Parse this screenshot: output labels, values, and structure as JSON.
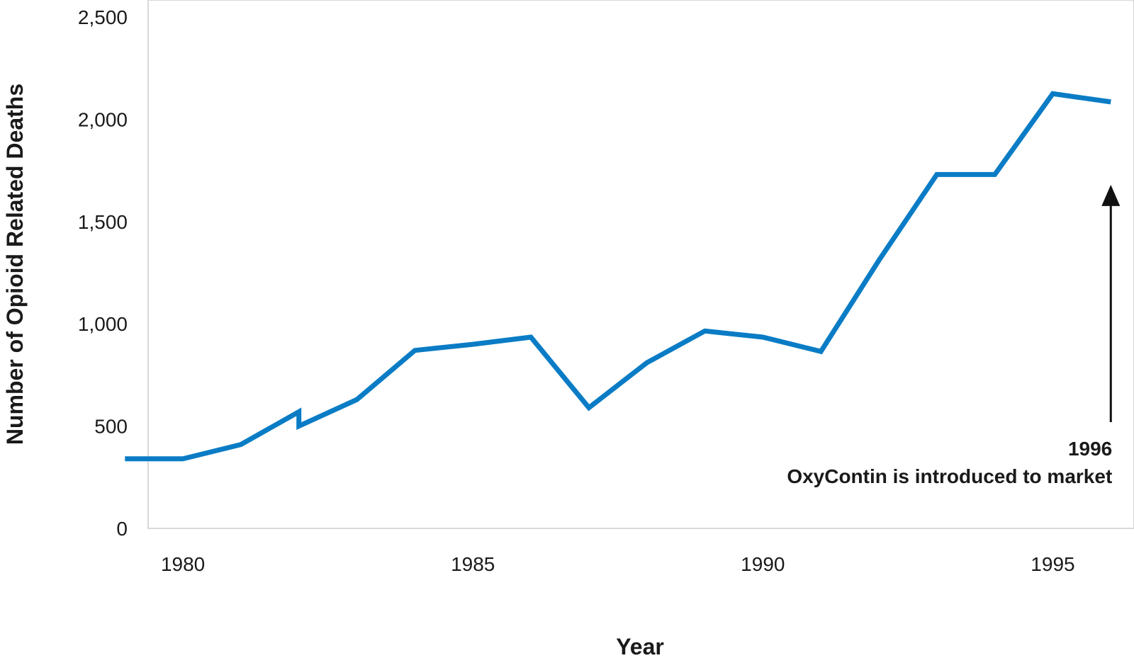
{
  "chart_data": {
    "type": "line",
    "title": "",
    "xlabel": "Year",
    "ylabel": "Number of Opioid Related Deaths",
    "xlim": [
      1979.4,
      1996.4
    ],
    "ylim": [
      0,
      2500
    ],
    "x_ticks": [
      1980,
      1985,
      1990,
      1995
    ],
    "x_tick_labels": [
      "1980",
      "1985",
      "1990",
      "1995"
    ],
    "y_ticks": [
      0,
      500,
      1000,
      1500,
      2000,
      2500
    ],
    "y_tick_labels": [
      "0",
      "500",
      "1,000",
      "1,500",
      "2,000",
      "2,500"
    ],
    "grid": false,
    "line_color": "#0a7cc5",
    "series": [
      {
        "x": [
          1979,
          1980,
          1981,
          1982,
          1982,
          1983,
          1984,
          1985,
          1986,
          1987,
          1988,
          1989,
          1990,
          1991,
          1992,
          1993,
          1994,
          1995,
          1996
        ],
        "y": [
          340,
          340,
          410,
          570,
          500,
          630,
          870,
          900,
          935,
          590,
          810,
          965,
          935,
          865,
          1310,
          1730,
          1730,
          2125,
          2085
        ]
      }
    ],
    "annotations": [
      {
        "x": 1996,
        "y": 1680,
        "line1": "1996",
        "line2": "OxyContin is introduced to market"
      }
    ]
  }
}
